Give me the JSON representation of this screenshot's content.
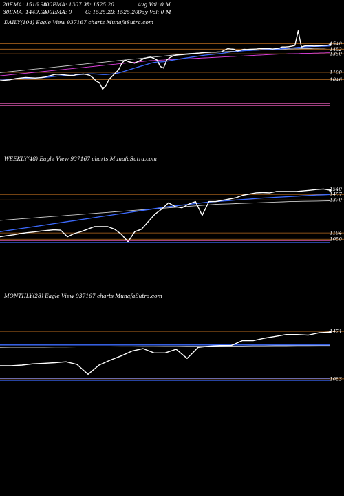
{
  "header": {
    "ema20": "20EMA: 1516.94",
    "ema100": "100EMA: 1307.28",
    "open": "O: 1525.20",
    "avg_vol": "Avg Vol: 0  M",
    "ema30": "30EMA: 1449.94",
    "ema200": "200EMA: 0",
    "close": "C: 1525.20",
    "low": "L: 1525.20",
    "day_vol": "Day Vol: 0  M"
  },
  "chart_data": [
    {
      "type": "line",
      "title": "DAILY(104) Eagle   View  937167 charts MunafaSutra.com",
      "ylim": [
        960,
        1640
      ],
      "price_levels": [
        {
          "label": "1540",
          "value": 1540
        },
        {
          "label": "1452",
          "value": 1507
        },
        {
          "label": "1350",
          "value": 1478
        },
        {
          "label": "1100",
          "value": 1364
        },
        {
          "label": "1046",
          "value": 1320
        }
      ],
      "series": [
        {
          "color": "#ffffff",
          "values": [
            1312,
            1314,
            1316,
            1318,
            1322,
            1326,
            1328,
            1330,
            1332,
            1331,
            1330,
            1329,
            1330,
            1332,
            1335,
            1340,
            1345,
            1350,
            1352,
            1350,
            1348,
            1346,
            1344,
            1345,
            1350,
            1352,
            1353,
            1350,
            1345,
            1330,
            1310,
            1300,
            1260,
            1280,
            1320,
            1340,
            1360,
            1380,
            1420,
            1440,
            1430,
            1425,
            1420,
            1430,
            1440,
            1450,
            1455,
            1458,
            1450,
            1440,
            1400,
            1390,
            1440,
            1455,
            1465,
            1470,
            1472,
            1473,
            1475,
            1476,
            1478,
            1480,
            1482,
            1484,
            1486,
            1487,
            1488,
            1488,
            1489,
            1490,
            1500,
            1510,
            1508,
            1506,
            1496,
            1500,
            1506,
            1505,
            1506,
            1507,
            1508,
            1510,
            1510,
            1510,
            1510,
            1508,
            1510,
            1512,
            1520,
            1520,
            1522,
            1525,
            1530,
            1620,
            1520,
            1526,
            1528,
            1527,
            1526,
            1527,
            1528,
            1529,
            1530,
            1534
          ]
        },
        {
          "color": "#3d6bff",
          "values": [
            1322,
            1322,
            1322,
            1323,
            1323,
            1323,
            1324,
            1325,
            1326,
            1327,
            1328,
            1329,
            1330,
            1331,
            1333,
            1335,
            1337,
            1339,
            1341,
            1342,
            1343,
            1344,
            1345,
            1346,
            1348,
            1350,
            1352,
            1353,
            1354,
            1354,
            1353,
            1352,
            1350,
            1350,
            1352,
            1354,
            1356,
            1360,
            1366,
            1372,
            1378,
            1384,
            1390,
            1396,
            1402,
            1408,
            1414,
            1420,
            1424,
            1427,
            1428,
            1429,
            1432,
            1436,
            1440,
            1443,
            1446,
            1449,
            1452,
            1455,
            1458,
            1461,
            1464,
            1467,
            1470,
            1472,
            1474,
            1476,
            1478,
            1480,
            1483,
            1486,
            1489,
            1491,
            1493,
            1495,
            1497,
            1498,
            1499,
            1500,
            1501,
            1502,
            1503,
            1504,
            1505,
            1506,
            1507,
            1508,
            1510,
            1511,
            1513,
            1514,
            1516,
            1518,
            1519,
            1521,
            1522,
            1523,
            1524,
            1524,
            1525,
            1525,
            1526,
            1527
          ]
        },
        {
          "color": "#cccccc",
          "values": [
            1362,
            1364,
            1366,
            1368,
            1370,
            1372,
            1374,
            1376,
            1378,
            1380,
            1382,
            1384,
            1386,
            1388,
            1390,
            1392,
            1394,
            1396,
            1398,
            1400,
            1402,
            1404,
            1406,
            1408,
            1410,
            1412,
            1414,
            1416,
            1418,
            1420,
            1422,
            1424,
            1426,
            1428,
            1430,
            1432,
            1434,
            1436,
            1438,
            1440,
            1442,
            1444,
            1446,
            1448,
            1450,
            1452,
            1454,
            1456,
            1458,
            1460,
            1462,
            1464,
            1466,
            1468,
            1470,
            1472,
            1474,
            1476,
            1478,
            1480,
            1481,
            1482,
            1483,
            1484,
            1485,
            1486,
            1487,
            1488,
            1489,
            1490,
            1491,
            1492,
            1493,
            1494,
            1495,
            1496,
            1497,
            1498,
            1499,
            1500,
            1501,
            1502,
            1503,
            1504,
            1505,
            1505,
            1506,
            1506,
            1507,
            1507,
            1508,
            1508,
            1509,
            1509,
            1510,
            1510,
            1511,
            1511,
            1512,
            1512,
            1513,
            1513,
            1514,
            1514
          ]
        },
        {
          "color": "#e040e0",
          "values": [
            1342,
            1344,
            1346,
            1348,
            1350,
            1352,
            1354,
            1356,
            1358,
            1360,
            1362,
            1364,
            1366,
            1368,
            1370,
            1372,
            1374,
            1376,
            1378,
            1380,
            1382,
            1384,
            1386,
            1388,
            1390,
            1392,
            1394,
            1396,
            1398,
            1400,
            1402,
            1404,
            1406,
            1408,
            1410,
            1412,
            1414,
            1416,
            1418,
            1420,
            1422,
            1424,
            1426,
            1428,
            1430,
            1432,
            1434,
            1436,
            1437,
            1438,
            1439,
            1440,
            1441,
            1442,
            1443,
            1444,
            1445,
            1446,
            1447,
            1448,
            1449,
            1450,
            1451,
            1452,
            1453,
            1454,
            1455,
            1456,
            1457,
            1458,
            1459,
            1460,
            1461,
            1462,
            1463,
            1464,
            1465,
            1466,
            1467,
            1468,
            1469,
            1470,
            1471,
            1472,
            1473,
            1474,
            1475,
            1476,
            1477,
            1477,
            1478,
            1478,
            1479,
            1479,
            1480,
            1480,
            1481,
            1481,
            1482,
            1482,
            1483,
            1483,
            1484,
            1484
          ]
        }
      ]
    },
    {
      "type": "line",
      "title": "WEEKLY(48) Eagle   View  937167 charts MunafaSutra.com",
      "ylim": [
        850,
        1740
      ],
      "price_levels": [
        {
          "label": "1540",
          "value": 1540
        },
        {
          "label": "1457",
          "value": 1497
        },
        {
          "label": "1370",
          "value": 1453
        },
        {
          "label": "1194",
          "value": 1190
        },
        {
          "label": "1050",
          "value": 1140
        }
      ],
      "series": [
        {
          "color": "#ffffff",
          "values": [
            1160,
            1168,
            1175,
            1185,
            1192,
            1198,
            1205,
            1210,
            1215,
            1212,
            1160,
            1185,
            1200,
            1220,
            1240,
            1240,
            1240,
            1220,
            1180,
            1120,
            1200,
            1220,
            1280,
            1340,
            1380,
            1430,
            1400,
            1390,
            1420,
            1440,
            1330,
            1440,
            1440,
            1450,
            1460,
            1470,
            1490,
            1500,
            1510,
            1512,
            1510,
            1520,
            1520,
            1520,
            1520,
            1525,
            1530,
            1536,
            1540,
            1530
          ]
        },
        {
          "color": "#3d6bff",
          "values": [
            1200,
            1208,
            1216,
            1224,
            1232,
            1240,
            1248,
            1256,
            1264,
            1272,
            1280,
            1288,
            1296,
            1304,
            1312,
            1320,
            1328,
            1336,
            1344,
            1352,
            1360,
            1368,
            1376,
            1384,
            1392,
            1400,
            1406,
            1412,
            1418,
            1424,
            1430,
            1436,
            1440,
            1444,
            1448,
            1452,
            1456,
            1460,
            1464,
            1468,
            1471,
            1474,
            1477,
            1480,
            1483,
            1486,
            1489,
            1492,
            1494,
            1496
          ]
        },
        {
          "color": "#cccccc",
          "values": [
            1290,
            1294,
            1298,
            1302,
            1306,
            1310,
            1314,
            1318,
            1322,
            1326,
            1330,
            1334,
            1338,
            1342,
            1346,
            1350,
            1354,
            1358,
            1362,
            1366,
            1370,
            1374,
            1378,
            1382,
            1386,
            1390,
            1394,
            1398,
            1402,
            1406,
            1410,
            1414,
            1418,
            1420,
            1422,
            1424,
            1426,
            1428,
            1430,
            1432,
            1434,
            1436,
            1438,
            1440,
            1441,
            1442,
            1443,
            1444,
            1445,
            1446
          ]
        }
      ]
    },
    {
      "type": "line",
      "title": "MONTHLY(28) Eagle   View  937167 charts MunafaSutra.com",
      "ylim": [
        800,
        1720
      ],
      "price_levels": [
        {
          "label": "1471",
          "value": 1471
        },
        {
          "label": "1083",
          "value": 1083
        }
      ],
      "series": [
        {
          "color": "#ffffff",
          "values": [
            1190,
            1190,
            1195,
            1205,
            1210,
            1215,
            1222,
            1200,
            1120,
            1195,
            1235,
            1270,
            1310,
            1330,
            1295,
            1295,
            1325,
            1250,
            1340,
            1350,
            1355,
            1355,
            1395,
            1395,
            1415,
            1430,
            1445,
            1445,
            1440,
            1460,
            1465
          ]
        },
        {
          "color": "#3d6bff",
          "values": [
            1360,
            1360,
            1360,
            1360,
            1360,
            1360,
            1360,
            1360,
            1360,
            1360,
            1360,
            1360,
            1360,
            1360,
            1360,
            1360,
            1360,
            1360,
            1360,
            1360,
            1360,
            1360,
            1360,
            1360,
            1360,
            1360,
            1360,
            1360,
            1360,
            1360,
            1360
          ]
        },
        {
          "color": "#cccccc",
          "values": [
            1340,
            1341,
            1341,
            1342,
            1342,
            1343,
            1343,
            1344,
            1344,
            1345,
            1345,
            1346,
            1346,
            1347,
            1347,
            1348,
            1348,
            1349,
            1349,
            1350,
            1350,
            1351,
            1351,
            1352,
            1352,
            1353,
            1353,
            1354,
            1354,
            1355,
            1355
          ]
        }
      ]
    }
  ]
}
